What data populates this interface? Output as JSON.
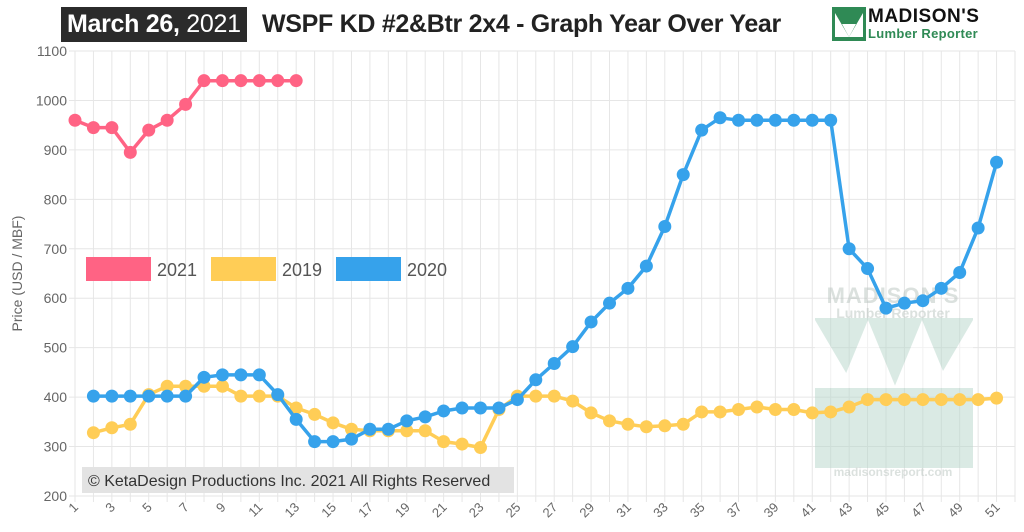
{
  "header": {
    "date_bold": "March 26,",
    "date_year": "2021",
    "title": "WSPF KD #2&Btr 2x4 - Graph Year Over Year"
  },
  "logo": {
    "line1": "MADISON'S",
    "line2": "Lumber Reporter",
    "icon": "triangle-m-logo-icon"
  },
  "watermark": {
    "line1": "MADISON'S",
    "line2": "Lumber Reporter",
    "url": "madisonsreport.com"
  },
  "copyright": "© KetaDesign Productions Inc. 2021 All Rights Reserved",
  "chart_data": {
    "type": "line",
    "ylabel": "Price (USD / MBF)",
    "ylim": [
      200,
      1100
    ],
    "yticks": [
      200,
      300,
      400,
      500,
      600,
      700,
      800,
      900,
      1000,
      1100
    ],
    "xlim": [
      1,
      52
    ],
    "xticks": [
      1,
      3,
      5,
      7,
      9,
      11,
      13,
      15,
      17,
      19,
      21,
      23,
      25,
      27,
      29,
      31,
      33,
      35,
      37,
      39,
      41,
      43,
      45,
      47,
      49,
      51
    ],
    "grid": true,
    "legend_position": "middle-left",
    "series": [
      {
        "name": "2021",
        "color": "#ff6384",
        "x": [
          1,
          2,
          3,
          4,
          5,
          6,
          7,
          8,
          9,
          10,
          11,
          12,
          13
        ],
        "y": [
          960,
          945,
          945,
          895,
          940,
          960,
          992,
          1040,
          1040,
          1040,
          1040,
          1040,
          1040
        ]
      },
      {
        "name": "2019",
        "color": "#ffcd56",
        "x": [
          2,
          3,
          4,
          5,
          6,
          7,
          8,
          9,
          10,
          11,
          12,
          13,
          14,
          15,
          16,
          17,
          18,
          19,
          20,
          21,
          22,
          23,
          24,
          25,
          26,
          27,
          28,
          29,
          30,
          31,
          32,
          33,
          34,
          35,
          36,
          37,
          38,
          39,
          40,
          41,
          42,
          43,
          44,
          45,
          46,
          47,
          48,
          49,
          50,
          51
        ],
        "y": [
          328,
          338,
          345,
          405,
          422,
          422,
          422,
          422,
          402,
          402,
          402,
          378,
          365,
          348,
          335,
          332,
          332,
          332,
          332,
          310,
          305,
          298,
          375,
          402,
          402,
          402,
          392,
          368,
          352,
          345,
          340,
          342,
          345,
          370,
          370,
          375,
          380,
          375,
          375,
          368,
          370,
          380,
          395,
          395,
          395,
          395,
          395,
          395,
          395,
          398
        ]
      },
      {
        "name": "2020",
        "color": "#36a2eb",
        "x": [
          2,
          3,
          4,
          5,
          6,
          7,
          8,
          9,
          10,
          11,
          12,
          13,
          14,
          15,
          16,
          17,
          18,
          19,
          20,
          21,
          22,
          23,
          24,
          25,
          26,
          27,
          28,
          29,
          30,
          31,
          32,
          33,
          34,
          35,
          36,
          37,
          38,
          39,
          40,
          41,
          42,
          43,
          44,
          45,
          46,
          47,
          48,
          49,
          50,
          51
        ],
        "y": [
          402,
          402,
          402,
          402,
          402,
          402,
          440,
          445,
          445,
          445,
          405,
          355,
          310,
          310,
          315,
          335,
          335,
          352,
          360,
          372,
          378,
          378,
          378,
          395,
          435,
          468,
          502,
          552,
          590,
          620,
          665,
          745,
          850,
          940,
          965,
          960,
          960,
          960,
          960,
          960,
          960,
          700,
          660,
          580,
          590,
          595,
          620,
          652,
          742,
          875
        ]
      }
    ]
  }
}
